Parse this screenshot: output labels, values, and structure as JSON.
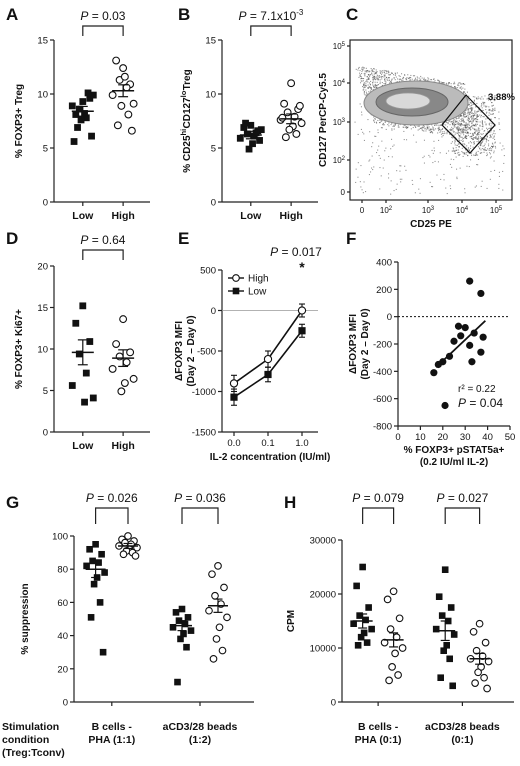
{
  "chart_data": [
    {
      "panel": "A",
      "type": "scatter",
      "ylabel": "% FOXP3+ Treg",
      "categories": [
        "Low",
        "High"
      ],
      "ylim": [
        0,
        15
      ],
      "yticks": [
        0,
        5,
        10,
        15
      ],
      "annotations": [
        {
          "text_italic": "P",
          "text": " = 0.03",
          "between": [
            0,
            1
          ]
        }
      ],
      "series": [
        {
          "category": "Low",
          "marker": "filled-square",
          "mean": 8.4,
          "sem": 0.45,
          "values": [
            9.3,
            8.1,
            9.6,
            8.6,
            7.8,
            8.9,
            9.9,
            8.2,
            7.6,
            10.1,
            6.9,
            6.1,
            5.6
          ]
        },
        {
          "category": "High",
          "marker": "open-circle",
          "mean": 10.3,
          "sem": 0.55,
          "values": [
            12.4,
            13.1,
            10.9,
            11.3,
            10.6,
            9.9,
            9.1,
            11.6,
            8.9,
            8.1,
            7.1,
            6.6
          ]
        }
      ]
    },
    {
      "panel": "B",
      "type": "scatter",
      "ylabel": "% CD25hiCD127lo Treg",
      "ylabel_parts": {
        "a": "% CD25",
        "b": "hi",
        "c": "CD127",
        "d": "lo",
        "e": " Treg"
      },
      "categories": [
        "Low",
        "High"
      ],
      "ylim": [
        0,
        15
      ],
      "yticks": [
        0,
        5,
        10,
        15
      ],
      "annotations": [
        {
          "text_italic": "P",
          "text": " = 7.1x10",
          "sup": "-3",
          "between": [
            0,
            1
          ]
        }
      ],
      "series": [
        {
          "category": "Low",
          "marker": "filled-square",
          "mean": 6.2,
          "sem": 0.35,
          "values": [
            7.1,
            6.9,
            6.6,
            6.3,
            6.1,
            5.9,
            6.7,
            5.4,
            4.9,
            6.4,
            7.3,
            5.7
          ]
        },
        {
          "category": "High",
          "marker": "open-circle",
          "mean": 7.7,
          "sem": 0.45,
          "values": [
            11.0,
            9.1,
            8.6,
            8.3,
            7.9,
            7.6,
            7.3,
            7.0,
            6.7,
            6.3,
            6.0,
            8.9,
            7.8
          ]
        }
      ]
    },
    {
      "panel": "C",
      "type": "scatter",
      "subtype": "flow-cytometry-density",
      "xlabel": "CD25 PE",
      "ylabel": "CD127 PerCP-Cy5.5",
      "xticks": [
        "0",
        "10^2",
        "10^3",
        "10^4",
        "10^5"
      ],
      "yticks": [
        "0",
        "10^2",
        "10^3",
        "10^4",
        "10^5"
      ],
      "gate_label": "3.88%"
    },
    {
      "panel": "D",
      "type": "scatter",
      "ylabel": "% FOXP3+ Ki67+",
      "categories": [
        "Low",
        "High"
      ],
      "ylim": [
        0,
        20
      ],
      "yticks": [
        0,
        5,
        10,
        15,
        20
      ],
      "annotations": [
        {
          "text_italic": "P",
          "text": " = 0.64",
          "between": [
            0,
            1
          ]
        }
      ],
      "series": [
        {
          "category": "Low",
          "marker": "filled-square",
          "mean": 9.6,
          "sem": 1.5,
          "values": [
            15.2,
            13.1,
            10.9,
            9.4,
            7.1,
            5.6,
            4.1,
            3.6
          ]
        },
        {
          "category": "High",
          "marker": "open-circle",
          "mean": 8.9,
          "sem": 1.0,
          "values": [
            13.6,
            10.6,
            9.6,
            9.1,
            8.4,
            7.6,
            6.4,
            5.9,
            4.9
          ]
        }
      ]
    },
    {
      "panel": "E",
      "type": "line",
      "xlabel": "IL-2 concentration (IU/ml)",
      "ylabel": "ΔFOXP3 MFI",
      "ylabel2": "(Day 2 – Day 0)",
      "x": [
        0.0,
        0.1,
        1.0
      ],
      "xticks": [
        "0.0",
        "0.1",
        "1.0"
      ],
      "ylim": [
        -1500,
        500
      ],
      "yticks": [
        -1500,
        -1000,
        -500,
        0,
        500
      ],
      "legend": "top-left",
      "annotations": [
        {
          "text_italic": "P",
          "text": " = 0.017",
          "star": "*",
          "at_x": 1.0
        }
      ],
      "series": [
        {
          "name": "High",
          "marker": "open-circle",
          "values": [
            -900,
            -600,
            0
          ],
          "err": [
            100,
            100,
            80
          ]
        },
        {
          "name": "Low",
          "marker": "filled-square",
          "values": [
            -1070,
            -790,
            -250
          ],
          "err": [
            100,
            90,
            80
          ]
        }
      ]
    },
    {
      "panel": "F",
      "type": "scatter",
      "xlabel": "% FOXP3+ pSTAT5a+",
      "xlabel2": "(0.2 IU/ml IL-2)",
      "ylabel": "ΔFOXP3 MFI",
      "ylabel2": "(Day 2 – Day 0)",
      "xlim": [
        0,
        50
      ],
      "xticks": [
        0,
        10,
        20,
        30,
        40,
        50
      ],
      "ylim": [
        -800,
        400
      ],
      "yticks": [
        -800,
        -600,
        -400,
        -200,
        0,
        200,
        400
      ],
      "annotations": [
        {
          "text": "r² = 0.22"
        },
        {
          "text_italic": "P",
          "text": " = 0.04"
        }
      ],
      "fit": {
        "x": [
          17,
          39
        ],
        "y": [
          -370,
          -30
        ]
      },
      "points": [
        {
          "x": 32,
          "y": 260
        },
        {
          "x": 37,
          "y": 170
        },
        {
          "x": 27,
          "y": -70
        },
        {
          "x": 30,
          "y": -80
        },
        {
          "x": 34,
          "y": -120
        },
        {
          "x": 28,
          "y": -140
        },
        {
          "x": 38,
          "y": -150
        },
        {
          "x": 25,
          "y": -180
        },
        {
          "x": 32,
          "y": -210
        },
        {
          "x": 37,
          "y": -260
        },
        {
          "x": 23,
          "y": -290
        },
        {
          "x": 20,
          "y": -330
        },
        {
          "x": 33,
          "y": -330
        },
        {
          "x": 18,
          "y": -350
        },
        {
          "x": 16,
          "y": -410
        },
        {
          "x": 21,
          "y": -650
        }
      ]
    },
    {
      "panel": "G",
      "type": "scatter",
      "ylabel": "% suppression",
      "ylim": [
        0,
        100
      ],
      "yticks": [
        0,
        20,
        40,
        60,
        80,
        100
      ],
      "categories": [
        "B cells - PHA (1:1)",
        "aCD3/28 beads (1:2)"
      ],
      "category_lines": [
        [
          "B cells -",
          "PHA (1:1)"
        ],
        [
          "aCD3/28 beads",
          "(1:2)"
        ]
      ],
      "condition_label": [
        "Stimulation",
        "condition",
        "(Treg:Tconv)"
      ],
      "annotations": [
        {
          "text_italic": "P",
          "text": " = 0.026",
          "between": [
            0,
            1
          ]
        },
        {
          "text_italic": "P",
          "text": " = 0.036",
          "between": [
            2,
            3
          ]
        }
      ],
      "series": [
        {
          "category": "B cells - PHA (1:1)",
          "marker": "filled-square",
          "mean": 80,
          "sem": 5,
          "values": [
            95,
            92,
            89,
            85,
            84,
            82,
            78,
            75,
            71,
            60,
            51,
            30
          ]
        },
        {
          "category": "B cells - PHA (1:1)",
          "marker": "open-circle",
          "mean": 94,
          "sem": 1.5,
          "values": [
            100,
            98,
            97,
            96,
            95,
            94,
            93,
            92,
            91,
            90,
            89,
            88
          ]
        },
        {
          "category": "aCD3/28 beads (1:2)",
          "marker": "filled-square",
          "mean": 46,
          "sem": 3,
          "values": [
            56,
            54,
            51,
            49,
            47,
            45,
            43,
            41,
            38,
            33,
            12
          ]
        },
        {
          "category": "aCD3/28 beads (1:2)",
          "marker": "open-circle",
          "mean": 58,
          "sem": 4,
          "values": [
            82,
            77,
            69,
            64,
            59,
            55,
            51,
            45,
            38,
            31,
            26
          ]
        }
      ]
    },
    {
      "panel": "H",
      "type": "scatter",
      "ylabel": "CPM",
      "ylim": [
        0,
        30000
      ],
      "yticks": [
        0,
        10000,
        20000,
        30000
      ],
      "categories": [
        "B cells - PHA (0:1)",
        "aCD3/28 beads (0:1)"
      ],
      "category_lines": [
        [
          "B cells -",
          "PHA (0:1)"
        ],
        [
          "aCD3/28 beads",
          "(0:1)"
        ]
      ],
      "annotations": [
        {
          "text_italic": "P",
          "text": " = 0.079",
          "between": [
            0,
            1
          ]
        },
        {
          "text_italic": "P",
          "text": " = 0.027",
          "between": [
            2,
            3
          ]
        }
      ],
      "series": [
        {
          "category": "B cells - PHA (0:1)",
          "marker": "filled-square",
          "mean": 15000,
          "sem": 1300,
          "values": [
            25000,
            21500,
            17500,
            16000,
            15200,
            14500,
            13500,
            12800,
            12000,
            11000,
            10500
          ]
        },
        {
          "category": "B cells - PHA (0:1)",
          "marker": "open-circle",
          "mean": 11500,
          "sem": 1300,
          "values": [
            20500,
            19000,
            15500,
            13500,
            12000,
            11000,
            10000,
            9000,
            6500,
            5000,
            4000
          ]
        },
        {
          "category": "aCD3/28 beads (0:1)",
          "marker": "filled-square",
          "mean": 13200,
          "sem": 1800,
          "values": [
            24500,
            19500,
            17500,
            16000,
            15000,
            13500,
            12500,
            10500,
            9500,
            8000,
            4500,
            3000
          ]
        },
        {
          "category": "aCD3/28 beads (0:1)",
          "marker": "open-circle",
          "mean": 8000,
          "sem": 1000,
          "values": [
            14500,
            13000,
            11000,
            9500,
            8500,
            8000,
            7500,
            6500,
            5500,
            4500,
            3500,
            2500
          ]
        }
      ]
    }
  ]
}
